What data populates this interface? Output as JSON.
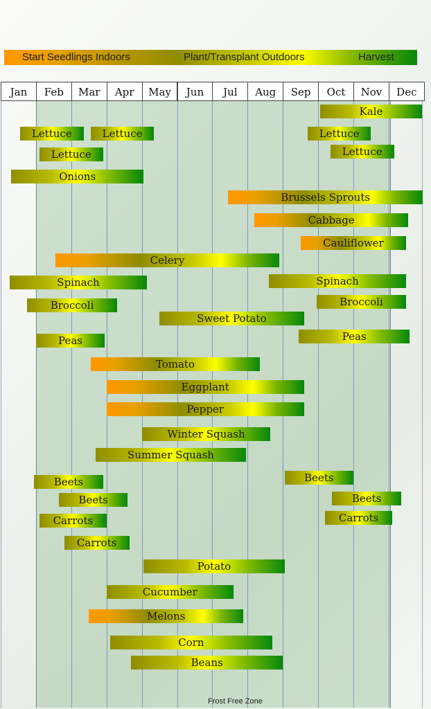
{
  "legend": {
    "start_seedlings": "Start Seedlings Indoors",
    "plant_transplant": "Plant/Transplant Outdoors",
    "harvest": "Harvest"
  },
  "colors": {
    "seedling_orange": "#ff9700",
    "plant_olive": "#8f8d00",
    "plant_yellow": "#ffff00",
    "harvest_green": "#06870c",
    "frost_free_zone": "#a7c9a6"
  },
  "footer": {
    "frost_free_zone": "Frost Free Zone"
  },
  "chart_data": {
    "type": "gantt",
    "title": "",
    "months": [
      "Jan",
      "Feb",
      "Mar",
      "Apr",
      "May",
      "Jun",
      "Jul",
      "Aug",
      "Sep",
      "Oct",
      "Nov",
      "Dec"
    ],
    "frost_free_range": [
      1.0,
      11.0
    ],
    "phases": [
      "Start Seedlings Indoors",
      "Plant/Transplant Outdoors",
      "Harvest"
    ],
    "crops": [
      {
        "name": "Kale",
        "start": 9.05,
        "end": 11.95,
        "seedling": false
      },
      {
        "name": "Lettuce",
        "start": 0.55,
        "end": 2.35,
        "seedling": false
      },
      {
        "name": "Lettuce",
        "start": 2.55,
        "end": 4.35,
        "seedling": false
      },
      {
        "name": "Lettuce",
        "start": 8.7,
        "end": 10.5,
        "seedling": false
      },
      {
        "name": "Lettuce",
        "start": 1.1,
        "end": 2.9,
        "seedling": false
      },
      {
        "name": "Lettuce",
        "start": 9.35,
        "end": 11.15,
        "seedling": false
      },
      {
        "name": "Onions",
        "start": 0.3,
        "end": 4.05,
        "seedling": false
      },
      {
        "name": "Brussels Sprouts",
        "start": 6.45,
        "end": 11.98,
        "seedling": true
      },
      {
        "name": "Cabbage",
        "start": 7.2,
        "end": 11.55,
        "seedling": true
      },
      {
        "name": "Cauliflower",
        "start": 8.5,
        "end": 11.5,
        "seedling": true
      },
      {
        "name": "Celery",
        "start": 1.55,
        "end": 7.9,
        "seedling": true
      },
      {
        "name": "Spinach",
        "start": 0.25,
        "end": 4.15,
        "seedling": false
      },
      {
        "name": "Spinach",
        "start": 7.6,
        "end": 11.5,
        "seedling": false
      },
      {
        "name": "Broccoli",
        "start": 0.75,
        "end": 3.3,
        "seedling": false
      },
      {
        "name": "Broccoli",
        "start": 8.95,
        "end": 11.5,
        "seedling": false
      },
      {
        "name": "Sweet Potato",
        "start": 4.5,
        "end": 8.6,
        "seedling": false
      },
      {
        "name": "Peas",
        "start": 1.0,
        "end": 2.95,
        "seedling": false
      },
      {
        "name": "Peas",
        "start": 8.45,
        "end": 11.6,
        "seedling": false
      },
      {
        "name": "Tomato",
        "start": 2.55,
        "end": 7.35,
        "seedling": true
      },
      {
        "name": "Eggplant",
        "start": 3.0,
        "end": 8.6,
        "seedling": true
      },
      {
        "name": "Pepper",
        "start": 3.0,
        "end": 8.6,
        "seedling": true
      },
      {
        "name": "Winter Squash",
        "start": 4.0,
        "end": 7.65,
        "seedling": false
      },
      {
        "name": "Summer Squash",
        "start": 2.7,
        "end": 6.95,
        "seedling": false
      },
      {
        "name": "Beets",
        "start": 0.95,
        "end": 2.9,
        "seedling": false
      },
      {
        "name": "Beets",
        "start": 8.05,
        "end": 10.0,
        "seedling": false
      },
      {
        "name": "Beets",
        "start": 1.65,
        "end": 3.6,
        "seedling": false
      },
      {
        "name": "Beets",
        "start": 9.4,
        "end": 11.35,
        "seedling": false
      },
      {
        "name": "Carrots",
        "start": 1.1,
        "end": 3.0,
        "seedling": false
      },
      {
        "name": "Carrots",
        "start": 9.2,
        "end": 11.1,
        "seedling": false
      },
      {
        "name": "Carrots",
        "start": 1.8,
        "end": 3.65,
        "seedling": false
      },
      {
        "name": "Potato",
        "start": 4.05,
        "end": 8.05,
        "seedling": false
      },
      {
        "name": "Cucumber",
        "start": 3.0,
        "end": 6.6,
        "seedling": false
      },
      {
        "name": "Melons",
        "start": 2.5,
        "end": 6.88,
        "seedling": true
      },
      {
        "name": "Corn",
        "start": 3.1,
        "end": 7.7,
        "seedling": false
      },
      {
        "name": "Beans",
        "start": 3.7,
        "end": 8.0,
        "seedling": false
      }
    ]
  }
}
